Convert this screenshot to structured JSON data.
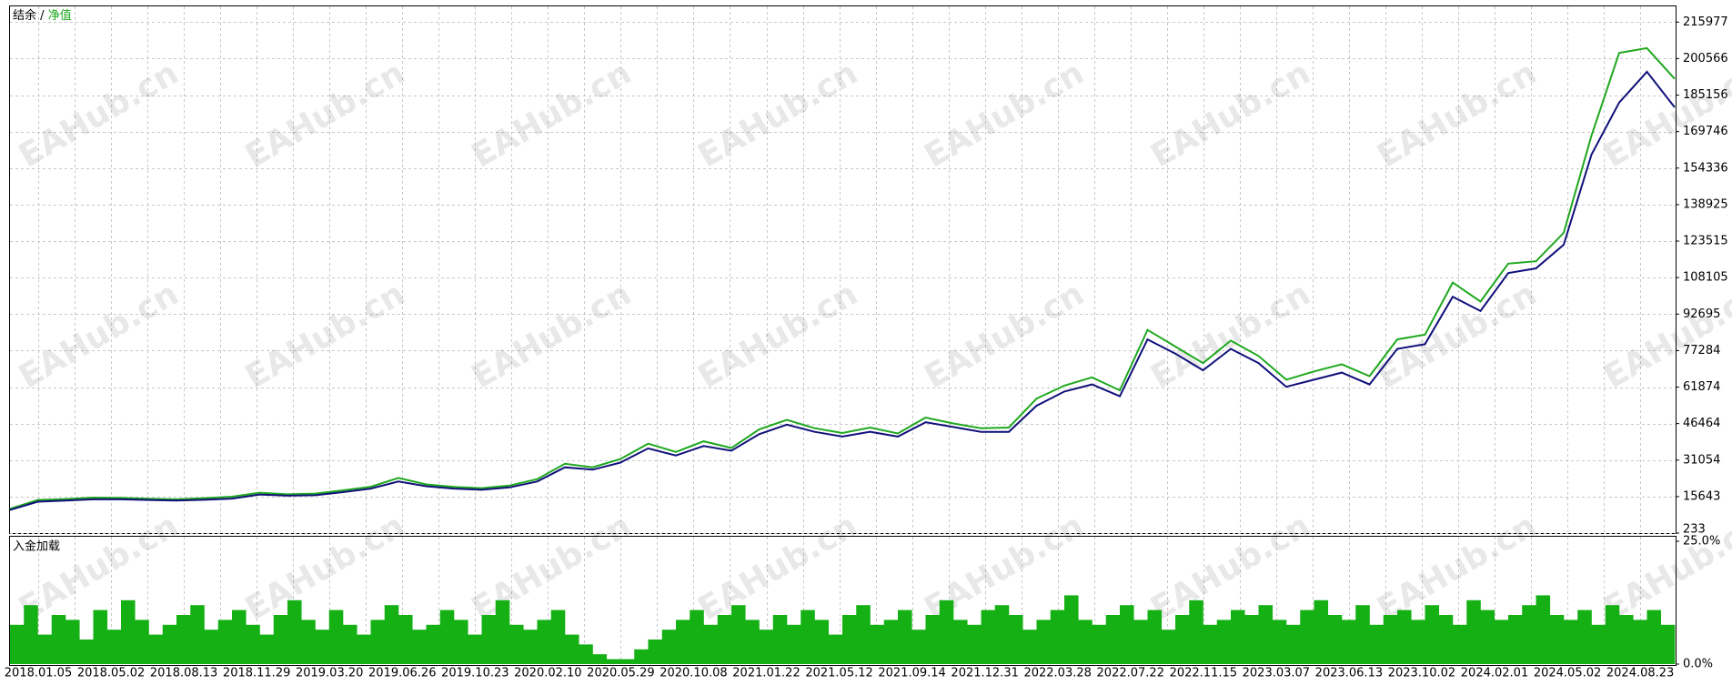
{
  "chart_data": [
    {
      "type": "line",
      "legend_separator": "/",
      "series": [
        {
          "name": "净值",
          "color": "#1fa81f",
          "values": [
            10500,
            14200,
            14600,
            15200,
            15100,
            14700,
            14500,
            15000,
            15600,
            17300,
            16600,
            16900,
            18300,
            19800,
            23500,
            20800,
            19700,
            19200,
            20300,
            23000,
            29500,
            28000,
            31500,
            38000,
            34500,
            39000,
            36200,
            44000,
            48000,
            44500,
            42500,
            44800,
            42300,
            49000,
            46500,
            44500,
            44800,
            57000,
            62500,
            66000,
            60500,
            86000,
            79000,
            72000,
            81500,
            75000,
            65000,
            68500,
            71500,
            66500,
            82000,
            84000,
            106000,
            98000,
            114000,
            115000,
            127000,
            168000,
            203000,
            205000,
            192000
          ]
        },
        {
          "name": "结余",
          "color": "#10107a",
          "values": [
            10000,
            13500,
            14000,
            14500,
            14500,
            14200,
            14000,
            14300,
            14800,
            16500,
            16000,
            16200,
            17500,
            19000,
            22000,
            20000,
            19000,
            18500,
            19500,
            22000,
            28000,
            27000,
            30000,
            36000,
            33000,
            37000,
            35000,
            42000,
            46000,
            43000,
            41000,
            43000,
            41000,
            47000,
            45000,
            43000,
            43000,
            54000,
            60000,
            63000,
            58000,
            82000,
            76000,
            69000,
            78000,
            72000,
            62000,
            65000,
            68000,
            63000,
            78000,
            80000,
            100000,
            94000,
            110000,
            112000,
            122000,
            160000,
            182000,
            195000,
            180000
          ]
        }
      ],
      "ylim": [
        233,
        223000
      ],
      "yticks": [
        233,
        15643,
        31054,
        46464,
        61874,
        77284,
        92695,
        108105,
        123515,
        138925,
        154336,
        169746,
        185156,
        200566,
        215977
      ],
      "grid": true
    },
    {
      "type": "bar",
      "title": "入金加载",
      "color": "#14b014",
      "values": [
        8,
        12,
        6,
        10,
        9,
        5,
        11,
        7,
        13,
        9,
        6,
        8,
        10,
        12,
        7,
        9,
        11,
        8,
        6,
        10,
        13,
        9,
        7,
        11,
        8,
        6,
        9,
        12,
        10,
        7,
        8,
        11,
        9,
        6,
        10,
        13,
        8,
        7,
        9,
        11,
        6,
        4,
        2,
        1,
        1,
        3,
        5,
        7,
        9,
        11,
        8,
        10,
        12,
        9,
        7,
        10,
        8,
        11,
        9,
        6,
        10,
        12,
        8,
        9,
        11,
        7,
        10,
        13,
        9,
        8,
        11,
        12,
        10,
        7,
        9,
        11,
        14,
        9,
        8,
        10,
        12,
        9,
        11,
        7,
        10,
        13,
        8,
        9,
        11,
        10,
        12,
        9,
        8,
        11,
        13,
        10,
        9,
        12,
        8,
        10,
        11,
        9,
        12,
        10,
        8,
        13,
        11,
        9,
        10,
        12,
        14,
        10,
        9,
        11,
        8,
        12,
        10,
        9,
        11,
        8
      ],
      "ylim": [
        0,
        25
      ],
      "yticks": [
        {
          "value": 25,
          "label": "25.0%"
        },
        {
          "value": 0,
          "label": "0.0%"
        }
      ],
      "xtick_labels": [
        "2018.01.05",
        "2018.05.02",
        "2018.08.13",
        "2018.11.29",
        "2019.03.20",
        "2019.06.26",
        "2019.10.23",
        "2020.02.10",
        "2020.05.29",
        "2020.10.08",
        "2021.01.22",
        "2021.05.12",
        "2021.09.14",
        "2021.12.31",
        "2022.03.28",
        "2022.07.22",
        "2022.11.15",
        "2023.03.07",
        "2023.06.13",
        "2023.10.02",
        "2024.02.01",
        "2024.05.02",
        "2024.08.23"
      ],
      "grid": true
    }
  ],
  "watermark": "EAHub.cn"
}
